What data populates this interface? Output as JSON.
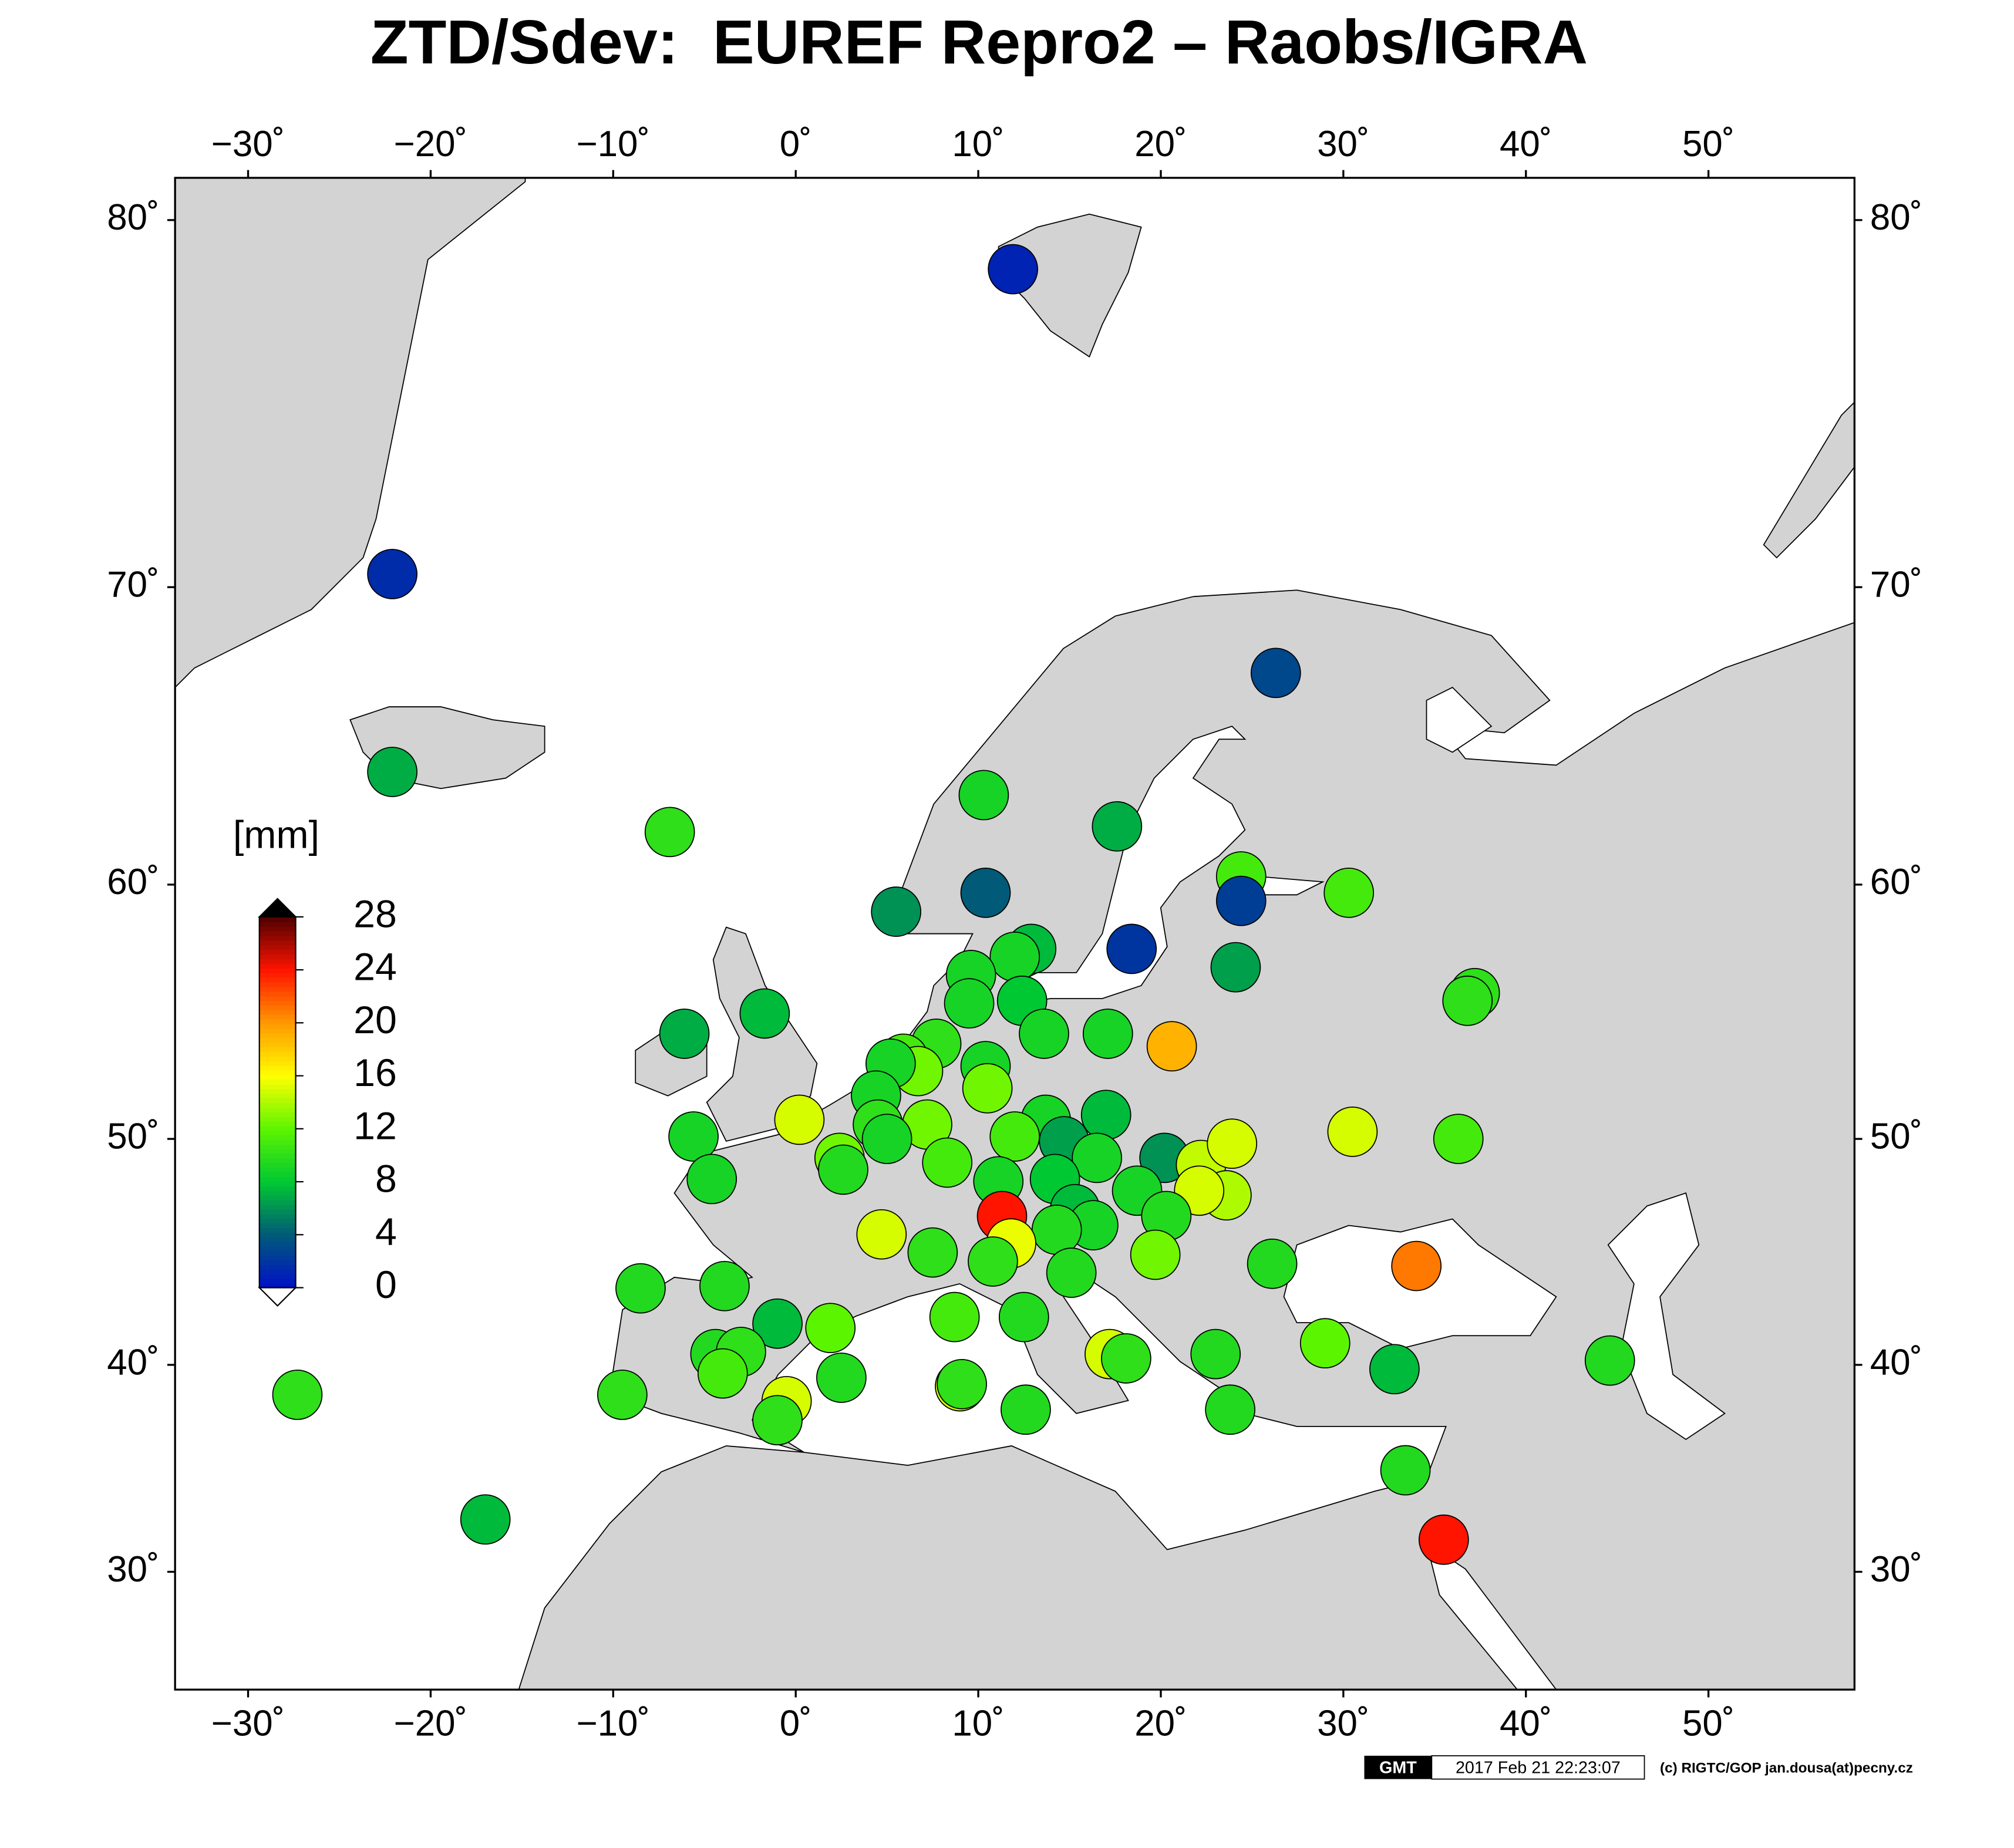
{
  "chart_data": {
    "type": "scatter",
    "title": "ZTD/Sdev:  EUREF Repro2 – Raobs/IGRA",
    "projection": "miller",
    "xlim": [
      -34,
      58
    ],
    "ylim": [
      24,
      81
    ],
    "xticks": [
      {
        "value": -30,
        "label": "−30˚"
      },
      {
        "value": -20,
        "label": "−20˚"
      },
      {
        "value": -10,
        "label": "−10˚"
      },
      {
        "value": 0,
        "label": "0˚"
      },
      {
        "value": 10,
        "label": "10˚"
      },
      {
        "value": 20,
        "label": "20˚"
      },
      {
        "value": 30,
        "label": "30˚"
      },
      {
        "value": 40,
        "label": "40˚"
      },
      {
        "value": 50,
        "label": "50˚"
      }
    ],
    "yticks": [
      {
        "value": 30,
        "label": "30˚"
      },
      {
        "value": 40,
        "label": "40˚"
      },
      {
        "value": 50,
        "label": "50˚"
      },
      {
        "value": 60,
        "label": "60˚"
      },
      {
        "value": 70,
        "label": "70˚"
      },
      {
        "value": 80,
        "label": "80˚"
      }
    ],
    "colorbar_label": "[mm]",
    "clim": [
      0,
      28
    ],
    "cticks": [
      0,
      4,
      8,
      12,
      16,
      20,
      24,
      28
    ],
    "colorscale": [
      "#0010c8",
      "#005a78",
      "#00c832",
      "#5cf500",
      "#ffff00",
      "#ff9900",
      "#ff1400",
      "#500000"
    ],
    "x": [
      11.9,
      -22.1,
      -22.1,
      -6.9,
      26.3,
      10.3,
      17.6,
      5.5,
      10.4,
      18.4,
      24.4,
      24.4,
      30.3,
      24.1,
      12.9,
      12.0,
      9.6,
      9.5,
      12.4,
      13.6,
      17.1,
      20.6,
      37.2,
      36.8,
      -1.7,
      -6.1,
      7.7,
      5.9,
      6.7,
      5.2,
      10.4,
      10.5,
      4.4,
      0.2,
      -5.6,
      7.2,
      4.5,
      5.0,
      17.0,
      13.7,
      12.0,
      14.7,
      16.5,
      20.2,
      22.2,
      23.9,
      23.6,
      22.1,
      30.5,
      36.3,
      2.4,
      2.6,
      -4.6,
      8.3,
      11.1,
      14.2,
      18.7,
      20.3,
      15.3,
      16.3,
      14.3,
      11.3,
      11.8,
      4.7,
      7.5,
      10.8,
      15.1,
      19.7,
      26.1,
      34.0,
      -8.5,
      -3.9,
      -1.0,
      1.9,
      8.7,
      12.5,
      17.2,
      18.1,
      23.0,
      29.0,
      32.8,
      44.6,
      -4.4,
      -3.0,
      -4.0,
      2.5,
      -0.5,
      9.0,
      9.1,
      -1.0,
      -9.5,
      -27.3,
      12.6,
      23.8,
      33.4,
      35.5,
      -17.0
    ],
    "y": [
      78.8,
      70.4,
      64.0,
      61.9,
      67.3,
      63.2,
      62.1,
      59.0,
      59.7,
      57.6,
      60.3,
      59.4,
      59.7,
      56.9,
      57.6,
      57.3,
      56.6,
      55.5,
      55.6,
      54.3,
      54.3,
      53.8,
      55.9,
      55.6,
      55.1,
      54.3,
      53.9,
      53.3,
      52.8,
      53.1,
      53.0,
      52.1,
      51.8,
      50.8,
      50.1,
      50.6,
      50.6,
      50.0,
      51.0,
      50.8,
      50.1,
      49.9,
      49.2,
      49.2,
      48.9,
      49.8,
      47.6,
      47.8,
      50.3,
      50.0,
      49.2,
      48.7,
      48.3,
      49.0,
      48.2,
      48.3,
      47.8,
      46.7,
      47.0,
      46.3,
      46.1,
      46.7,
      45.5,
      45.9,
      45.1,
      44.7,
      44.2,
      45.0,
      44.6,
      44.5,
      43.5,
      43.6,
      41.9,
      41.7,
      42.2,
      42.2,
      40.5,
      40.3,
      40.5,
      41.0,
      39.8,
      40.2,
      40.5,
      40.6,
      39.6,
      39.4,
      38.3,
      39.0,
      39.1,
      37.4,
      38.6,
      38.6,
      37.9,
      37.9,
      35.0,
      31.6,
      32.6
    ],
    "values": [
      1,
      1.5,
      7,
      10,
      3,
      9,
      7,
      6,
      4,
      2,
      11,
      2.5,
      11,
      6.5,
      7.5,
      9,
      9,
      9,
      8,
      9,
      9,
      19,
      10,
      10,
      7.5,
      7,
      10,
      11,
      12.5,
      9,
      9,
      12.5,
      9,
      15,
      9,
      12.5,
      10,
      9,
      7.5,
      9,
      11,
      6.5,
      9,
      6,
      14.5,
      15,
      14,
      15,
      15,
      11,
      12.5,
      9.5,
      9,
      11,
      9,
      8,
      9,
      9.5,
      7.5,
      9,
      9.5,
      24,
      15.5,
      15,
      10,
      10,
      9.5,
      12.5,
      9.5,
      21,
      9.5,
      9.5,
      7.5,
      12,
      11,
      9.5,
      15,
      10,
      9.5,
      12,
      7.5,
      9.5,
      9.5,
      10,
      11,
      9.5,
      15,
      15,
      10,
      10,
      10,
      10,
      9.5,
      9.5,
      9.5,
      24,
      7.5
    ]
  },
  "footer": {
    "logo": "GMT",
    "timestamp": "2017 Feb 21 22:23:07",
    "credit": "(c) RIGTC/GOP jan.dousa(at)pecny.cz"
  }
}
